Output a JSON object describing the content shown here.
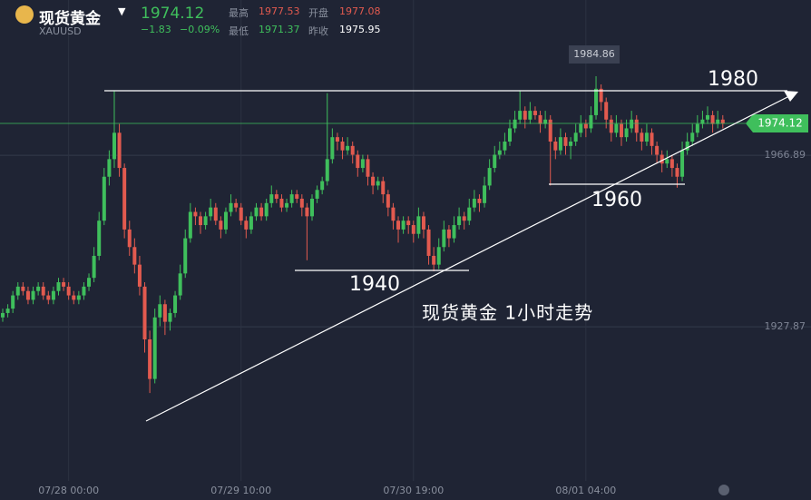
{
  "header": {
    "name": "现货黄金",
    "symbol": "XAUUSD",
    "price": "1974.12",
    "change": "−1.83",
    "change_pct": "−0.09%",
    "high_label": "最高",
    "high": "1977.53",
    "open_label": "开盘",
    "open": "1977.08",
    "low_label": "最低",
    "low": "1971.37",
    "prev_label": "昨收",
    "prev": "1975.95"
  },
  "chart_data": {
    "type": "candlestick",
    "categories": [
      null,
      null,
      null,
      null,
      null,
      null,
      null,
      null,
      null,
      null,
      null,
      null,
      null,
      "07/28 00:00",
      null,
      null,
      null,
      null,
      null,
      null,
      null,
      null,
      null,
      null,
      null,
      null,
      null,
      null,
      null,
      null,
      null,
      null,
      null,
      null,
      null,
      null,
      null,
      null,
      null,
      null,
      null,
      null,
      null,
      null,
      null,
      null,
      null,
      "07/29 10:00",
      null,
      null,
      null,
      null,
      null,
      null,
      null,
      null,
      null,
      null,
      null,
      null,
      null,
      null,
      null,
      null,
      null,
      null,
      null,
      null,
      null,
      null,
      null,
      null,
      null,
      null,
      null,
      null,
      null,
      null,
      null,
      null,
      null,
      "07/30 19:00",
      null,
      null,
      null,
      null,
      null,
      null,
      null,
      null,
      null,
      null,
      null,
      null,
      null,
      null,
      null,
      null,
      null,
      null,
      null,
      null,
      null,
      null,
      null,
      null,
      null,
      null,
      null,
      null,
      null,
      null,
      null,
      null,
      null,
      "08/01 04:00",
      null,
      null,
      null,
      null,
      null,
      null,
      null,
      null,
      null,
      null,
      null,
      null,
      null,
      null,
      null,
      null,
      null,
      null,
      null,
      null,
      null,
      null,
      null,
      null,
      null,
      null,
      null
    ],
    "ohlc": [
      [
        1930,
        1932,
        1929,
        1931
      ],
      [
        1931,
        1933,
        1930,
        1932
      ],
      [
        1932,
        1936,
        1931,
        1935
      ],
      [
        1935,
        1938,
        1934,
        1937
      ],
      [
        1937,
        1938,
        1935,
        1936
      ],
      [
        1936,
        1937,
        1933,
        1934
      ],
      [
        1934,
        1937,
        1933,
        1936
      ],
      [
        1936,
        1938,
        1935,
        1937
      ],
      [
        1937,
        1938,
        1934,
        1935
      ],
      [
        1935,
        1936,
        1933,
        1934
      ],
      [
        1934,
        1937,
        1933,
        1936
      ],
      [
        1936,
        1939,
        1935,
        1938
      ],
      [
        1938,
        1939,
        1936,
        1937
      ],
      [
        1937,
        1938,
        1934,
        1935
      ],
      [
        1935,
        1936,
        1933,
        1934
      ],
      [
        1934,
        1936,
        1933,
        1935
      ],
      [
        1935,
        1938,
        1934,
        1937
      ],
      [
        1937,
        1940,
        1936,
        1939
      ],
      [
        1939,
        1946,
        1938,
        1944
      ],
      [
        1944,
        1954,
        1943,
        1952
      ],
      [
        1952,
        1964,
        1951,
        1962
      ],
      [
        1962,
        1968,
        1960,
        1966
      ],
      [
        1966,
        1981.5,
        1964,
        1972
      ],
      [
        1972,
        1974,
        1962,
        1964
      ],
      [
        1964,
        1965,
        1948,
        1950
      ],
      [
        1950,
        1952,
        1944,
        1946
      ],
      [
        1946,
        1948,
        1940,
        1942
      ],
      [
        1942,
        1944,
        1935,
        1937
      ],
      [
        1937,
        1938,
        1922,
        1925
      ],
      [
        1925,
        1927,
        1912.8,
        1916
      ],
      [
        1916,
        1932,
        1915,
        1930
      ],
      [
        1930,
        1935,
        1928,
        1933
      ],
      [
        1933,
        1934,
        1926,
        1929
      ],
      [
        1929,
        1932,
        1927,
        1931
      ],
      [
        1931,
        1936,
        1930,
        1935
      ],
      [
        1935,
        1942,
        1934,
        1940
      ],
      [
        1940,
        1950,
        1939,
        1948
      ],
      [
        1948,
        1956,
        1947,
        1954
      ],
      [
        1954,
        1955,
        1951,
        1953
      ],
      [
        1953,
        1954,
        1949,
        1951
      ],
      [
        1951,
        1954,
        1950,
        1953
      ],
      [
        1953,
        1957,
        1952,
        1955
      ],
      [
        1955,
        1956,
        1951,
        1952
      ],
      [
        1952,
        1953,
        1948,
        1950
      ],
      [
        1950,
        1955,
        1949,
        1954
      ],
      [
        1954,
        1958,
        1953,
        1956
      ],
      [
        1956,
        1957,
        1954,
        1955
      ],
      [
        1955,
        1956,
        1951,
        1952
      ],
      [
        1952,
        1953,
        1948,
        1950
      ],
      [
        1950,
        1954,
        1949,
        1953
      ],
      [
        1953,
        1956,
        1952,
        1955
      ],
      [
        1955,
        1956,
        1952,
        1953
      ],
      [
        1953,
        1957,
        1952,
        1956
      ],
      [
        1956,
        1960,
        1955,
        1958
      ],
      [
        1958,
        1959,
        1956,
        1957
      ],
      [
        1957,
        1958,
        1954,
        1955
      ],
      [
        1955,
        1957,
        1954,
        1956
      ],
      [
        1956,
        1959,
        1955,
        1958
      ],
      [
        1958,
        1959,
        1956,
        1957
      ],
      [
        1957,
        1958,
        1953,
        1955
      ],
      [
        1955,
        1956,
        1943,
        1953
      ],
      [
        1953,
        1958,
        1952,
        1957
      ],
      [
        1957,
        1960,
        1956,
        1959
      ],
      [
        1959,
        1962,
        1958,
        1961
      ],
      [
        1961,
        1981,
        1960,
        1966
      ],
      [
        1966,
        1973,
        1965,
        1971
      ],
      [
        1971,
        1972,
        1968,
        1970
      ],
      [
        1970,
        1971,
        1966,
        1968
      ],
      [
        1968,
        1971,
        1967,
        1969
      ],
      [
        1969,
        1970,
        1965,
        1967
      ],
      [
        1967,
        1968,
        1962,
        1964
      ],
      [
        1964,
        1967,
        1963,
        1966
      ],
      [
        1966,
        1967,
        1960,
        1962
      ],
      [
        1962,
        1963,
        1958,
        1960
      ],
      [
        1960,
        1962,
        1959,
        1961
      ],
      [
        1961,
        1962,
        1956,
        1958
      ],
      [
        1958,
        1959,
        1953,
        1955
      ],
      [
        1955,
        1956,
        1950,
        1952
      ],
      [
        1952,
        1953,
        1947,
        1950
      ],
      [
        1950,
        1953,
        1949,
        1952
      ],
      [
        1952,
        1953,
        1949,
        1951
      ],
      [
        1951,
        1952,
        1947,
        1949
      ],
      [
        1949,
        1955,
        1948,
        1953
      ],
      [
        1953,
        1954,
        1948,
        1950
      ],
      [
        1950,
        1951,
        1942,
        1944
      ],
      [
        1944,
        1946,
        1940.5,
        1942
      ],
      [
        1942,
        1948,
        1941,
        1946
      ],
      [
        1946,
        1952,
        1945,
        1950
      ],
      [
        1950,
        1951,
        1946,
        1948
      ],
      [
        1948,
        1953,
        1947,
        1951
      ],
      [
        1951,
        1955,
        1950,
        1953
      ],
      [
        1953,
        1954,
        1950,
        1952
      ],
      [
        1952,
        1957,
        1951,
        1955
      ],
      [
        1955,
        1959,
        1954,
        1957
      ],
      [
        1957,
        1958,
        1954,
        1956
      ],
      [
        1956,
        1962,
        1955,
        1960
      ],
      [
        1960,
        1966,
        1959,
        1964
      ],
      [
        1964,
        1969,
        1963,
        1967
      ],
      [
        1967,
        1970,
        1966,
        1968
      ],
      [
        1968,
        1972,
        1967,
        1970
      ],
      [
        1970,
        1975,
        1969,
        1973
      ],
      [
        1973,
        1977,
        1972,
        1975
      ],
      [
        1975,
        1981.5,
        1974,
        1977
      ],
      [
        1977,
        1978,
        1973,
        1975
      ],
      [
        1975,
        1979,
        1974,
        1977
      ],
      [
        1977,
        1978,
        1975,
        1976
      ],
      [
        1976,
        1977,
        1972,
        1974
      ],
      [
        1974,
        1977,
        1973,
        1975
      ],
      [
        1975,
        1976,
        1960,
        1970
      ],
      [
        1970,
        1971,
        1966,
        1968
      ],
      [
        1968,
        1973,
        1967,
        1971
      ],
      [
        1971,
        1972,
        1967,
        1969
      ],
      [
        1969,
        1971,
        1966,
        1970
      ],
      [
        1970,
        1974,
        1969,
        1972
      ],
      [
        1972,
        1976,
        1971,
        1974
      ],
      [
        1974,
        1975,
        1971,
        1973
      ],
      [
        1973,
        1978,
        1972,
        1976
      ],
      [
        1976,
        1984.86,
        1975,
        1982
      ],
      [
        1982,
        1983,
        1977,
        1979
      ],
      [
        1979,
        1980,
        1973,
        1975
      ],
      [
        1975,
        1976,
        1970,
        1972
      ],
      [
        1972,
        1976,
        1971,
        1974
      ],
      [
        1974,
        1975,
        1969,
        1971
      ],
      [
        1971,
        1975,
        1970,
        1973
      ],
      [
        1973,
        1977,
        1972,
        1975
      ],
      [
        1975,
        1976,
        1970,
        1972
      ],
      [
        1972,
        1973,
        1968,
        1970
      ],
      [
        1970,
        1974,
        1969,
        1972
      ],
      [
        1972,
        1973,
        1967,
        1969
      ],
      [
        1969,
        1970,
        1965,
        1967
      ],
      [
        1967,
        1968,
        1963,
        1965
      ],
      [
        1965,
        1968,
        1964,
        1966
      ],
      [
        1966,
        1967,
        1962,
        1964
      ],
      [
        1964,
        1965,
        1959.5,
        1962
      ],
      [
        1962,
        1970,
        1961,
        1968
      ],
      [
        1968,
        1972,
        1967,
        1970
      ],
      [
        1970,
        1974,
        1969,
        1972
      ],
      [
        1972,
        1976,
        1971,
        1974
      ],
      [
        1974,
        1977,
        1973,
        1975
      ],
      [
        1975,
        1978,
        1974,
        1976
      ],
      [
        1976,
        1977,
        1972,
        1974
      ],
      [
        1974,
        1977,
        1973,
        1975
      ],
      [
        1975,
        1976,
        1973,
        1974.12
      ]
    ],
    "up_color": "#3fbf5c",
    "down_color": "#e25a4f",
    "ylim": [
      1892.8,
      2002.2
    ],
    "yticks": [
      1966.89,
      1927.87
    ],
    "grid": true,
    "last_price": 1974.12,
    "max_label": 1984.86,
    "annotations": [
      "1980",
      "1960",
      "1940",
      "现货黄金 1小时走势"
    ]
  }
}
